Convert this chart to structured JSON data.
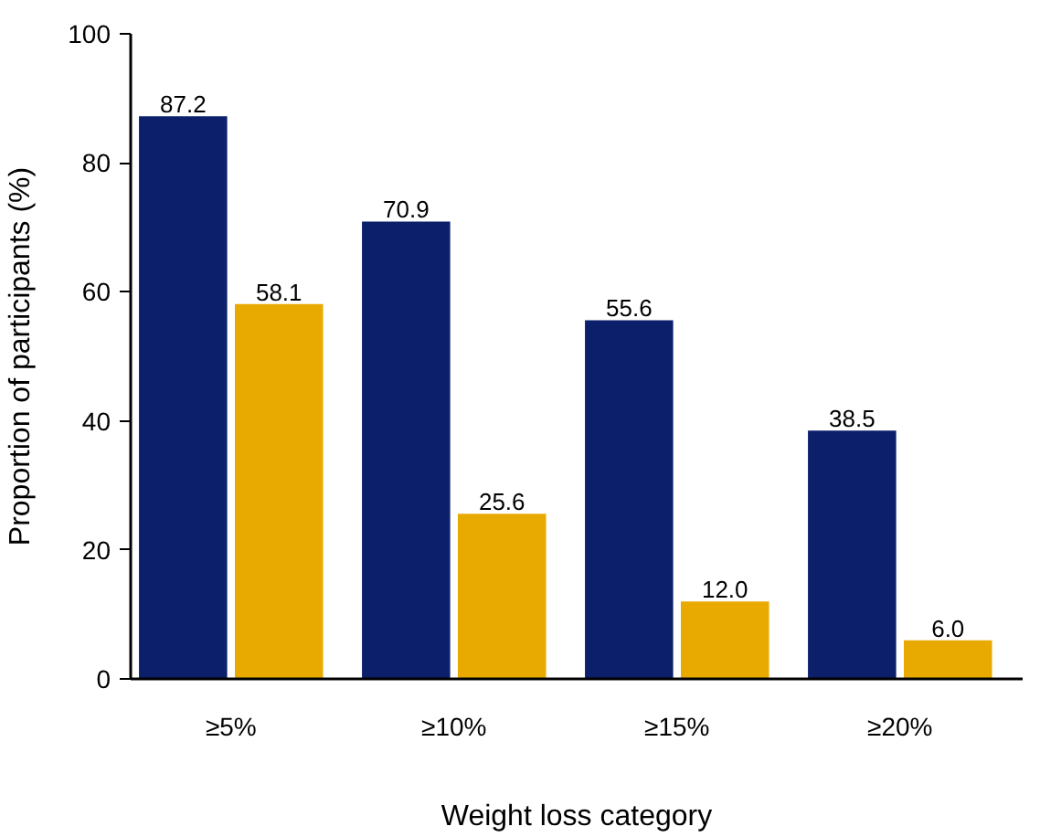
{
  "chart_data": {
    "type": "bar",
    "xlabel": "Weight loss category",
    "ylabel": "Proportion of participants (%)",
    "categories": [
      "≥5%",
      "≥10%",
      "≥15%",
      "≥20%"
    ],
    "series": [
      {
        "color": "#0b1f6b",
        "values": [
          87.2,
          70.9,
          55.6,
          38.5
        ],
        "value_labels": [
          "87.2",
          "70.9",
          "55.6",
          "38.5"
        ]
      },
      {
        "color": "#e8a900",
        "values": [
          58.1,
          25.6,
          12.0,
          6.0
        ],
        "value_labels": [
          "58.1",
          "25.6",
          "12.0",
          "6.0"
        ]
      }
    ],
    "ylim": [
      0,
      100
    ],
    "yticks": [
      0,
      20,
      40,
      60,
      80,
      100
    ],
    "grid": false
  }
}
